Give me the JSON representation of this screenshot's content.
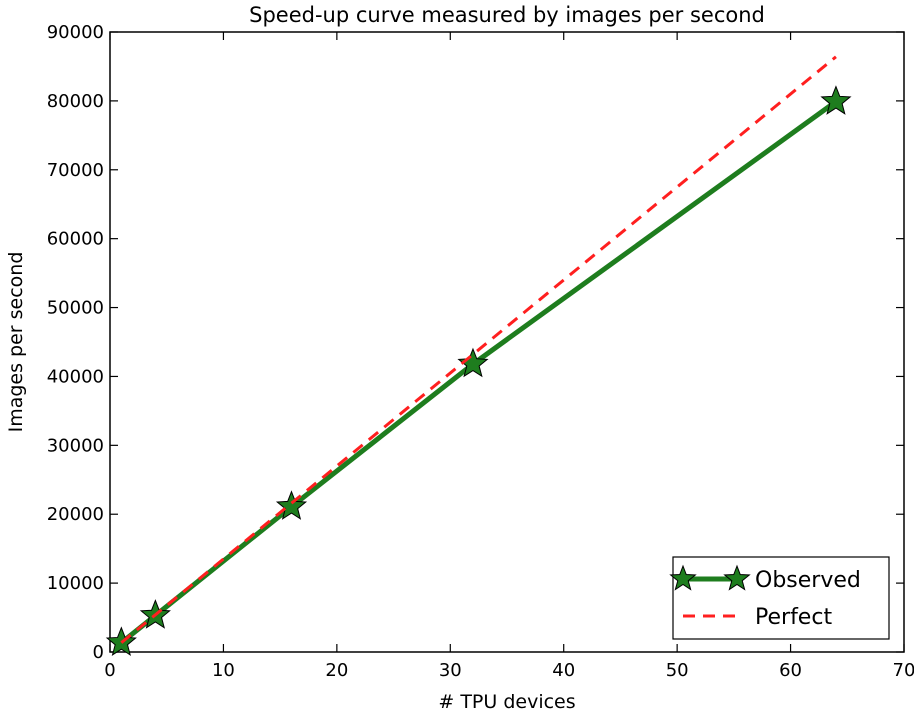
{
  "chart_data": {
    "type": "line",
    "title": "Speed-up curve measured by images per second",
    "xlabel": "# TPU devices",
    "ylabel": "Images per second",
    "xlim": [
      0,
      70
    ],
    "ylim": [
      0,
      90000
    ],
    "xticks": [
      0,
      10,
      20,
      30,
      40,
      50,
      60,
      70
    ],
    "yticks": [
      0,
      10000,
      20000,
      30000,
      40000,
      50000,
      60000,
      70000,
      80000,
      90000
    ],
    "grid": false,
    "legend_position": "lower-right",
    "series": [
      {
        "name": "Observed",
        "color": "#1e7d1e",
        "line_style": "solid",
        "marker": "star",
        "x": [
          1,
          4,
          16,
          32,
          64
        ],
        "y": [
          1350,
          5300,
          21100,
          41800,
          79900
        ]
      },
      {
        "name": "Perfect",
        "color": "#ff1f1f",
        "line_style": "dashed",
        "marker": "none",
        "x": [
          1,
          4,
          16,
          32,
          64
        ],
        "y": [
          1350,
          5400,
          21600,
          43200,
          86400
        ]
      }
    ]
  }
}
